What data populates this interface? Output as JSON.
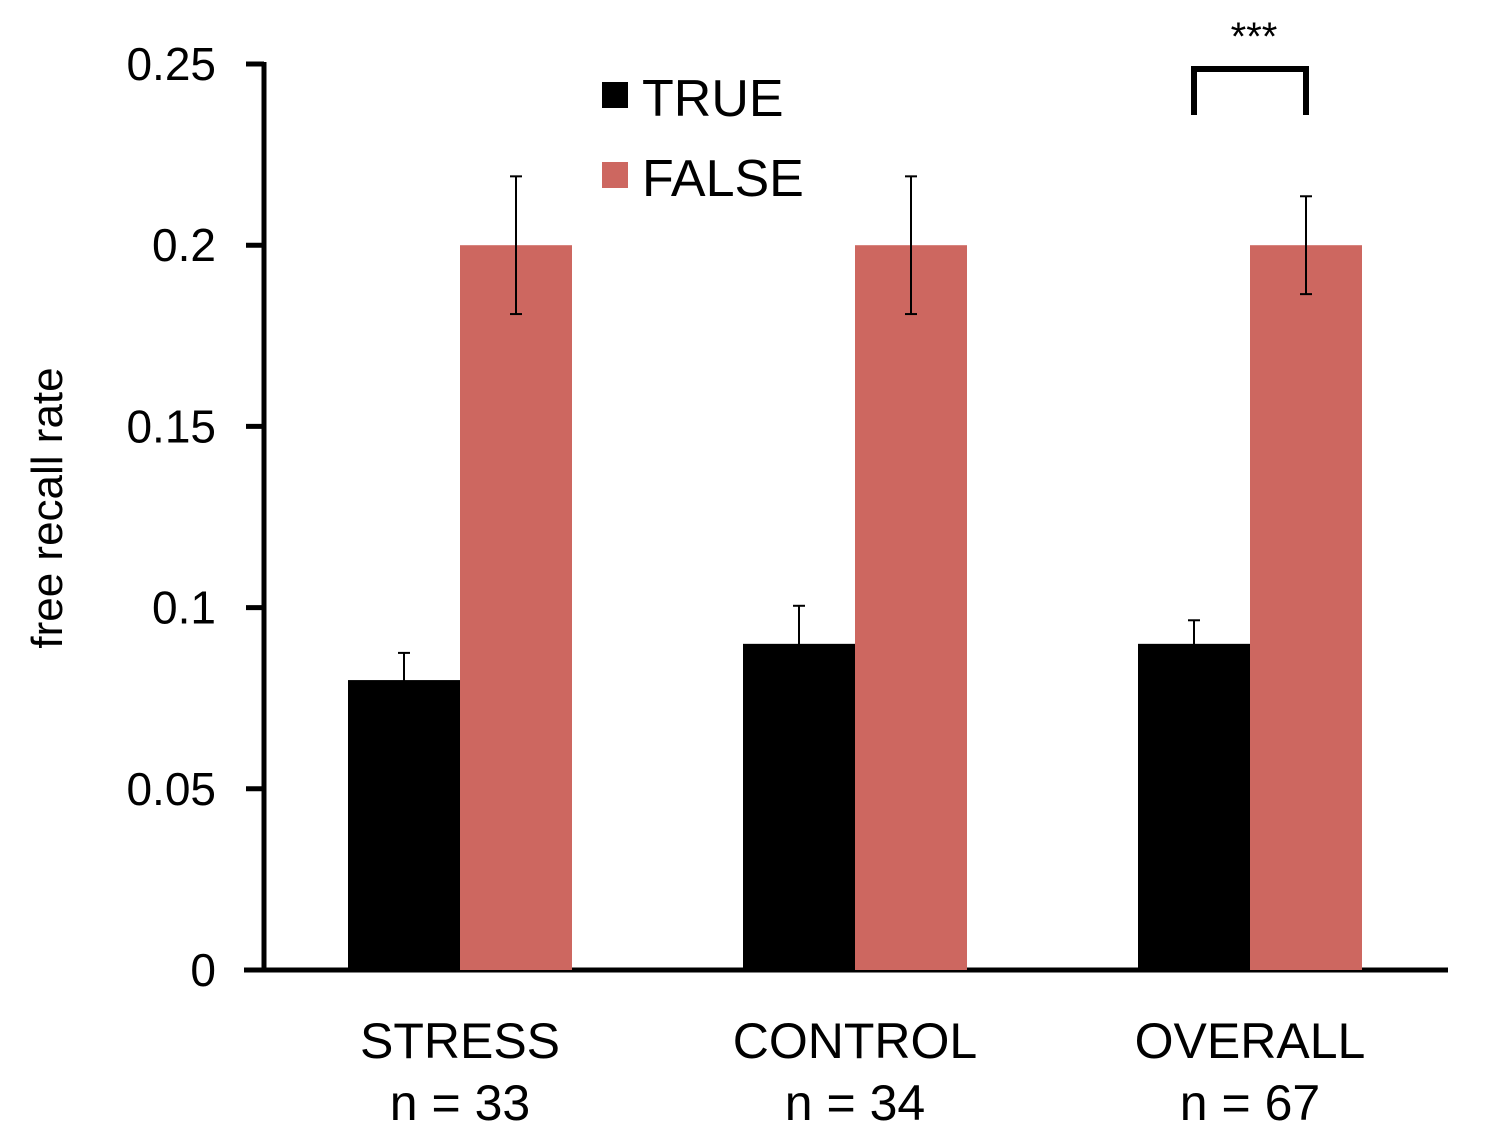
{
  "chart_data": {
    "type": "bar",
    "title": "",
    "xlabel": "",
    "ylabel": "free recall rate",
    "ylim": [
      0,
      0.25
    ],
    "yticks": [
      "0",
      "0.05",
      "0.1",
      "0.15",
      "0.2",
      "0.25"
    ],
    "yticks_values": [
      0,
      0.05,
      0.1,
      0.15,
      0.2,
      0.25
    ],
    "categories": [
      {
        "name": "STRESS",
        "n_label": "n = 33"
      },
      {
        "name": "CONTROL",
        "n_label": "n = 34"
      },
      {
        "name": "OVERALL",
        "n_label": "n = 67"
      }
    ],
    "series": [
      {
        "name": "TRUE",
        "color": "#000000",
        "values": [
          0.08,
          0.09,
          0.09
        ],
        "errors": [
          0.0075,
          0.0105,
          0.0065
        ]
      },
      {
        "name": "FALSE",
        "color": "#cd6760",
        "values": [
          0.2,
          0.2,
          0.2
        ],
        "errors": [
          0.019,
          0.019,
          0.0135
        ]
      }
    ],
    "legend": {
      "position": "top-center"
    },
    "annotations": [
      {
        "text": "***",
        "category_index": 2,
        "type": "significance-bracket"
      }
    ],
    "grid": false
  }
}
